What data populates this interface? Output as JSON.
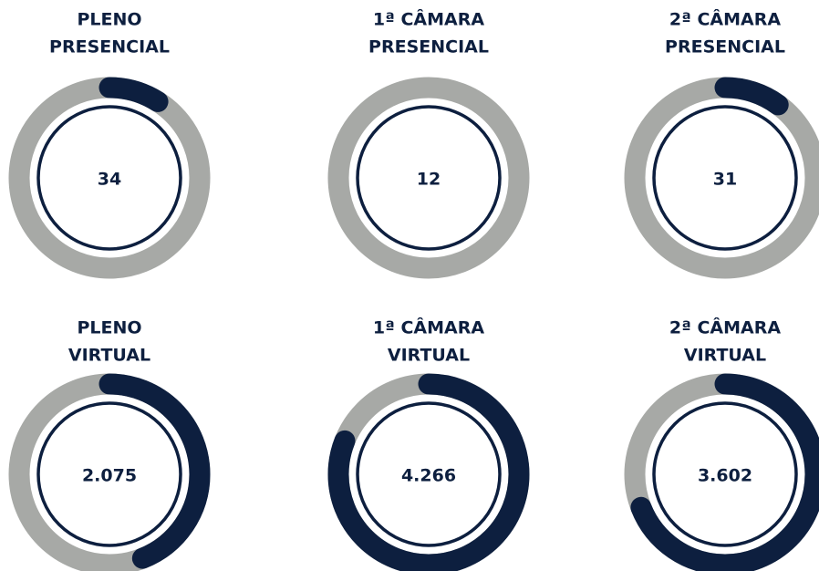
{
  "gauges": [
    {
      "title": [
        "PLENO",
        "PRESENCIAL"
      ],
      "value": "34",
      "arc": 9
    },
    {
      "title": [
        "1ª CÂMARA",
        "PRESENCIAL"
      ],
      "value": "12",
      "arc": 0
    },
    {
      "title": [
        "2ª CÂMARA",
        "PRESENCIAL"
      ],
      "value": "31",
      "arc": 10
    },
    {
      "title": [
        "PLENO",
        "VIRTUAL"
      ],
      "value": "2.075",
      "arc": 44
    },
    {
      "title": [
        "1ª CÂMARA",
        "VIRTUAL"
      ],
      "value": "4.266",
      "arc": 81
    },
    {
      "title": [
        "2ª CÂMARA",
        "VIRTUAL"
      ],
      "value": "3.602",
      "arc": 69
    }
  ]
}
